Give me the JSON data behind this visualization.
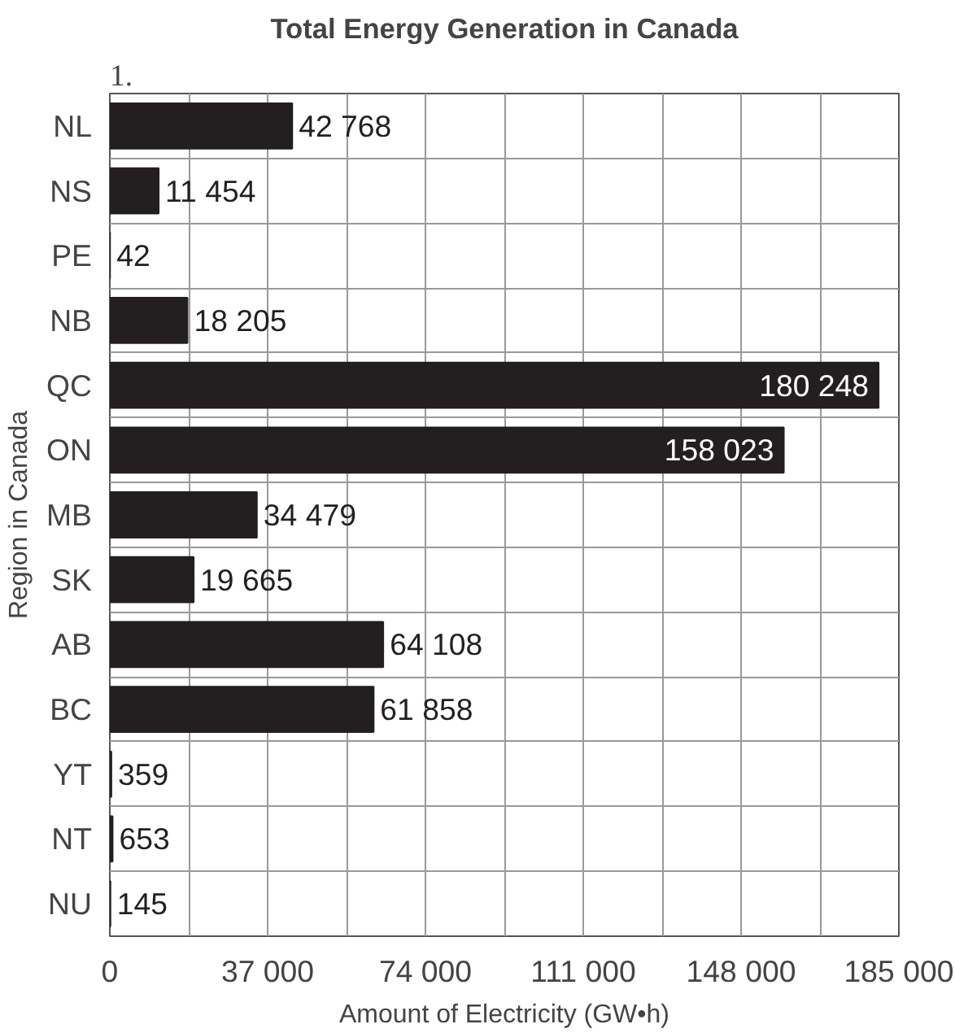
{
  "chart_data": {
    "type": "bar",
    "orientation": "horizontal",
    "title": "Total Energy Generation in Canada",
    "xlabel": "Amount of Electricity (GW•h)",
    "ylabel": "Region in Canada",
    "annotations": [
      "1."
    ],
    "categories": [
      "NL",
      "NS",
      "PE",
      "NB",
      "QC",
      "ON",
      "MB",
      "SK",
      "AB",
      "BC",
      "YT",
      "NT",
      "NU"
    ],
    "values": [
      42768,
      11454,
      42,
      18205,
      180248,
      158023,
      34479,
      19665,
      64108,
      61858,
      359,
      653,
      145
    ],
    "value_labels": [
      "42 768",
      "11 454",
      "42",
      "18 205",
      "180 248",
      "158 023",
      "34 479",
      "19 665",
      "64 108",
      "61 858",
      "359",
      "653",
      "145"
    ],
    "color": "#231f20",
    "xlim": [
      0,
      185000
    ],
    "xticks": [
      0,
      {
        "value": 18500,
        "label": null
      },
      {
        "value": 37000,
        "label": "37 000"
      },
      {
        "value": 55500,
        "label": null
      },
      {
        "value": 74000,
        "label": "74 000"
      },
      {
        "value": 92500,
        "label": null
      },
      {
        "value": 111000,
        "label": "111 000"
      },
      {
        "value": 129500,
        "label": null
      },
      {
        "value": 148000,
        "label": "148 000"
      },
      {
        "value": 166500,
        "label": null
      },
      {
        "value": 185000,
        "label": "185 000"
      }
    ],
    "grid": true
  }
}
